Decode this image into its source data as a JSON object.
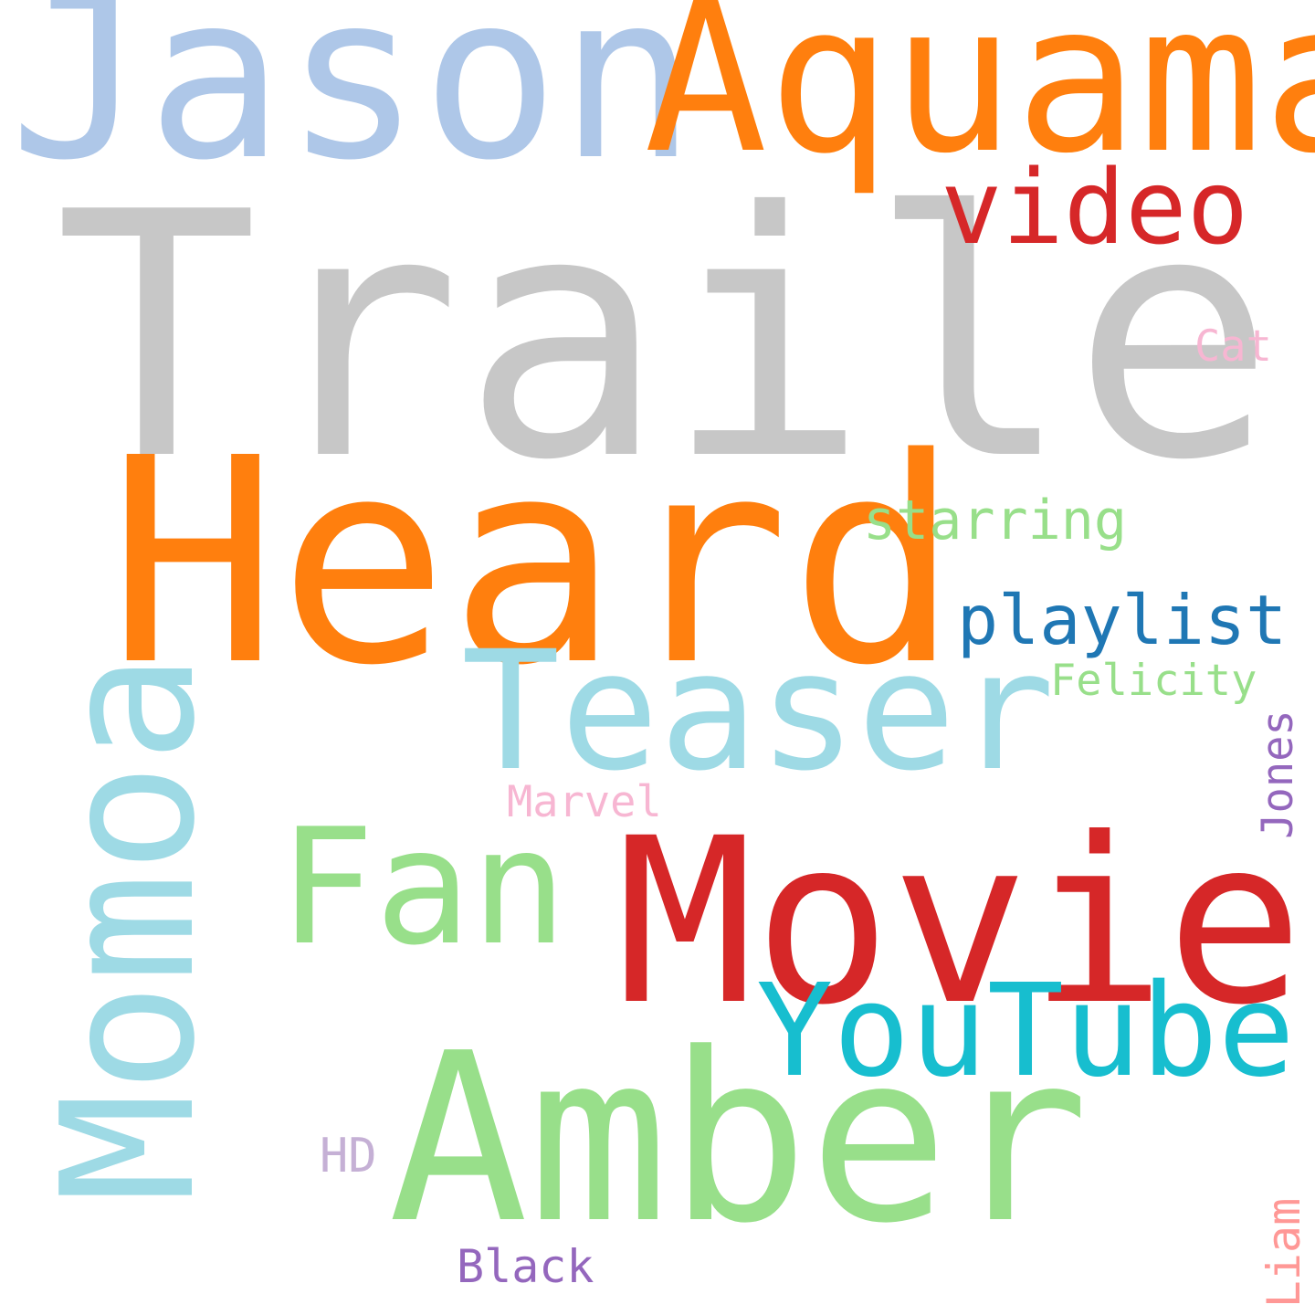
{
  "words": {
    "trailer": {
      "text": "Trailer",
      "color": "#c7c7c7"
    },
    "heard": {
      "text": "Heard",
      "color": "#ff7f0e"
    },
    "jason": {
      "text": "Jason",
      "color": "#aec7e8"
    },
    "aquaman": {
      "text": "Aquaman",
      "color": "#ff7f0e"
    },
    "video": {
      "text": "video",
      "color": "#d62728"
    },
    "momoa": {
      "text": "Momoa",
      "color": "#9edae5",
      "orientation": "vertical"
    },
    "movie": {
      "text": "Movie",
      "color": "#d62728"
    },
    "amber": {
      "text": "Amber",
      "color": "#98df8a"
    },
    "teaser": {
      "text": "Teaser",
      "color": "#9edae5"
    },
    "fan": {
      "text": "Fan",
      "color": "#98df8a"
    },
    "youtube": {
      "text": "YouTube",
      "color": "#17becf"
    },
    "playlist": {
      "text": "playlist",
      "color": "#1f77b4"
    },
    "starring": {
      "text": "starring",
      "color": "#98df8a"
    },
    "felicity": {
      "text": "Felicity",
      "color": "#98df8a"
    },
    "cat": {
      "text": "Cat",
      "color": "#f7b6d2"
    },
    "marvel": {
      "text": "Marvel",
      "color": "#f7b6d2"
    },
    "jones": {
      "text": "Jones",
      "color": "#9467bd",
      "orientation": "vertical"
    },
    "hd": {
      "text": "HD",
      "color": "#c5b0d5"
    },
    "black": {
      "text": "Black",
      "color": "#9467bd"
    },
    "liam": {
      "text": "Liam",
      "color": "#ff9896",
      "orientation": "vertical"
    }
  }
}
